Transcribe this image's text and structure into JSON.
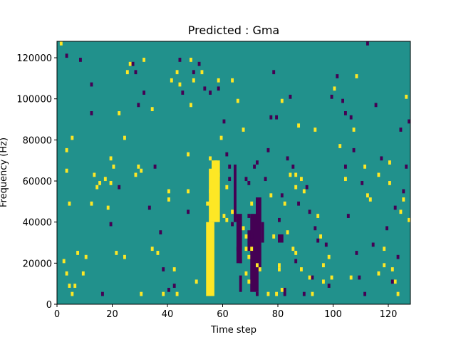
{
  "chart_data": {
    "type": "heatmap",
    "title": "Predicted : Gma",
    "xlabel": "Time step",
    "ylabel": "Frequency (Hz)",
    "xlim": [
      0,
      128
    ],
    "ylim": [
      0,
      128000
    ],
    "x_ticks": [
      0,
      20,
      40,
      60,
      80,
      100,
      120
    ],
    "y_ticks": [
      0,
      20000,
      40000,
      60000,
      80000,
      100000,
      120000
    ],
    "cell_height_hz": 2000,
    "grid": false,
    "colors": {
      "low": "#440154",
      "mid": "#21918c",
      "high": "#fde725"
    },
    "background_value": 0,
    "high_cells": [
      [
        1,
        126000
      ],
      [
        5,
        80000
      ],
      [
        3,
        74000
      ],
      [
        3,
        64000
      ],
      [
        4,
        48000
      ],
      [
        2,
        20000
      ],
      [
        3,
        14000
      ],
      [
        4,
        8000
      ],
      [
        5,
        4000
      ],
      [
        6,
        8000
      ],
      [
        7,
        24000
      ],
      [
        10,
        22000
      ],
      [
        9,
        14000
      ],
      [
        13,
        62000
      ],
      [
        12,
        48000
      ],
      [
        14,
        56000
      ],
      [
        15,
        58000
      ],
      [
        17,
        60000
      ],
      [
        19,
        58000
      ],
      [
        18,
        46000
      ],
      [
        19,
        70000
      ],
      [
        20,
        66000
      ],
      [
        22,
        92000
      ],
      [
        21,
        24000
      ],
      [
        24,
        22000
      ],
      [
        24,
        80000
      ],
      [
        25,
        112000
      ],
      [
        26,
        116000
      ],
      [
        29,
        66000
      ],
      [
        28,
        62000
      ],
      [
        30,
        64000
      ],
      [
        31,
        118000
      ],
      [
        30,
        4000
      ],
      [
        34,
        94000
      ],
      [
        34,
        26000
      ],
      [
        36,
        24000
      ],
      [
        38,
        4000
      ],
      [
        40,
        54000
      ],
      [
        40,
        50000
      ],
      [
        42,
        16000
      ],
      [
        41,
        108000
      ],
      [
        43,
        112000
      ],
      [
        44,
        106000
      ],
      [
        43,
        4000
      ],
      [
        47,
        54000
      ],
      [
        47,
        72000
      ],
      [
        48,
        96000
      ],
      [
        48,
        118000
      ],
      [
        49,
        108000
      ],
      [
        50,
        10000
      ],
      [
        52,
        112000
      ],
      [
        55,
        70000
      ],
      [
        55,
        64000
      ],
      [
        55,
        54000
      ],
      [
        55,
        48000
      ],
      [
        55,
        38000
      ],
      [
        55,
        28000
      ],
      [
        55,
        18000
      ],
      [
        55,
        8000
      ],
      [
        54,
        48000
      ],
      [
        56,
        58000
      ],
      [
        58,
        108000
      ],
      [
        59,
        80000
      ],
      [
        60,
        42000
      ],
      [
        61,
        40000
      ],
      [
        61,
        56000
      ],
      [
        63,
        44000
      ],
      [
        63,
        108000
      ],
      [
        65,
        98000
      ],
      [
        67,
        84000
      ],
      [
        67,
        36000
      ],
      [
        68,
        32000
      ],
      [
        68,
        26000
      ],
      [
        68,
        14000
      ],
      [
        69,
        10000
      ],
      [
        69,
        22000
      ],
      [
        70,
        26000
      ],
      [
        70,
        48000
      ],
      [
        72,
        18000
      ],
      [
        73,
        16000
      ],
      [
        76,
        4000
      ],
      [
        77,
        52000
      ],
      [
        78,
        32000
      ],
      [
        79,
        4000
      ],
      [
        80,
        16000
      ],
      [
        80,
        18000
      ],
      [
        81,
        6000
      ],
      [
        81,
        98000
      ],
      [
        82,
        48000
      ],
      [
        83,
        34000
      ],
      [
        84,
        62000
      ],
      [
        85,
        26000
      ],
      [
        86,
        24000
      ],
      [
        86,
        56000
      ],
      [
        86,
        62000
      ],
      [
        87,
        86000
      ],
      [
        88,
        60000
      ],
      [
        89,
        54000
      ],
      [
        88,
        16000
      ],
      [
        91,
        12000
      ],
      [
        92,
        4000
      ],
      [
        93,
        84000
      ],
      [
        94,
        42000
      ],
      [
        95,
        32000
      ],
      [
        96,
        18000
      ],
      [
        96,
        10000
      ],
      [
        98,
        22000
      ],
      [
        99,
        12000
      ],
      [
        100,
        104000
      ],
      [
        102,
        76000
      ],
      [
        104,
        60000
      ],
      [
        106,
        12000
      ],
      [
        107,
        84000
      ],
      [
        108,
        110000
      ],
      [
        111,
        66000
      ],
      [
        112,
        52000
      ],
      [
        113,
        50000
      ],
      [
        116,
        62000
      ],
      [
        116,
        14000
      ],
      [
        118,
        26000
      ],
      [
        118,
        18000
      ],
      [
        120,
        58000
      ],
      [
        120,
        68000
      ],
      [
        121,
        16000
      ],
      [
        122,
        10000
      ],
      [
        123,
        4000
      ],
      [
        124,
        44000
      ],
      [
        125,
        50000
      ],
      [
        126,
        100000
      ],
      [
        127,
        40000
      ]
    ],
    "high_blocks": [
      [
        54,
        57,
        4000,
        40000
      ],
      [
        55,
        59,
        40000,
        64000
      ],
      [
        56,
        59,
        62000,
        70000
      ],
      [
        57,
        58,
        68000,
        70000
      ]
    ],
    "low_cells": [
      [
        3,
        120000
      ],
      [
        8,
        118000
      ],
      [
        12,
        106000
      ],
      [
        12,
        92000
      ],
      [
        16,
        4000
      ],
      [
        19,
        38000
      ],
      [
        22,
        56000
      ],
      [
        27,
        116000
      ],
      [
        28,
        112000
      ],
      [
        29,
        96000
      ],
      [
        31,
        102000
      ],
      [
        33,
        46000
      ],
      [
        35,
        66000
      ],
      [
        37,
        34000
      ],
      [
        38,
        16000
      ],
      [
        40,
        6000
      ],
      [
        42,
        8000
      ],
      [
        44,
        118000
      ],
      [
        45,
        102000
      ],
      [
        47,
        44000
      ],
      [
        49,
        112000
      ],
      [
        51,
        116000
      ],
      [
        53,
        104000
      ],
      [
        55,
        102000
      ],
      [
        58,
        104000
      ],
      [
        60,
        88000
      ],
      [
        61,
        72000
      ],
      [
        62,
        66000
      ],
      [
        62,
        60000
      ],
      [
        63,
        38000
      ],
      [
        64,
        42000
      ],
      [
        65,
        26000
      ],
      [
        66,
        20000
      ],
      [
        68,
        60000
      ],
      [
        69,
        58000
      ],
      [
        69,
        42000
      ],
      [
        70,
        32000
      ],
      [
        71,
        66000
      ],
      [
        72,
        68000
      ],
      [
        72,
        4000
      ],
      [
        75,
        60000
      ],
      [
        76,
        74000
      ],
      [
        77,
        90000
      ],
      [
        78,
        112000
      ],
      [
        79,
        90000
      ],
      [
        80,
        40000
      ],
      [
        81,
        52000
      ],
      [
        83,
        70000
      ],
      [
        84,
        100000
      ],
      [
        85,
        66000
      ],
      [
        86,
        20000
      ],
      [
        87,
        48000
      ],
      [
        89,
        4000
      ],
      [
        90,
        56000
      ],
      [
        91,
        44000
      ],
      [
        92,
        12000
      ],
      [
        93,
        36000
      ],
      [
        94,
        30000
      ],
      [
        97,
        28000
      ],
      [
        98,
        8000
      ],
      [
        99,
        100000
      ],
      [
        101,
        110000
      ],
      [
        103,
        98000
      ],
      [
        104,
        92000
      ],
      [
        104,
        66000
      ],
      [
        105,
        42000
      ],
      [
        106,
        90000
      ],
      [
        107,
        74000
      ],
      [
        108,
        24000
      ],
      [
        109,
        12000
      ],
      [
        110,
        58000
      ],
      [
        111,
        4000
      ],
      [
        112,
        126000
      ],
      [
        114,
        28000
      ],
      [
        115,
        96000
      ],
      [
        117,
        70000
      ],
      [
        119,
        36000
      ],
      [
        121,
        10000
      ],
      [
        122,
        46000
      ],
      [
        123,
        22000
      ],
      [
        124,
        84000
      ],
      [
        125,
        54000
      ],
      [
        126,
        66000
      ],
      [
        127,
        88000
      ]
    ],
    "low_blocks": [
      [
        64,
        65,
        40000,
        68000
      ],
      [
        65,
        67,
        20000,
        44000
      ],
      [
        66,
        67,
        6000,
        14000
      ],
      [
        69,
        71,
        26000,
        36000
      ],
      [
        70,
        73,
        6000,
        44000
      ],
      [
        72,
        74,
        16000,
        52000
      ],
      [
        74,
        75,
        30000,
        40000
      ],
      [
        80,
        82,
        30000,
        34000
      ],
      [
        82,
        83,
        4000,
        8000
      ]
    ]
  }
}
